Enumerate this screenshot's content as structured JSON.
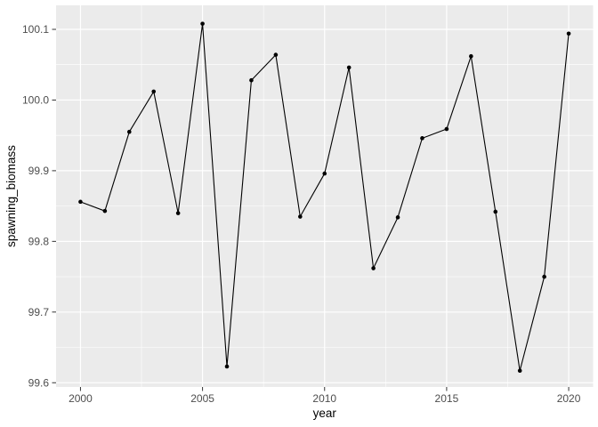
{
  "figure": {
    "background": "#FFFFFF"
  },
  "chart_data": {
    "type": "line",
    "title": "",
    "xlabel": "year",
    "ylabel": "spawning_biomass",
    "x": [
      2000,
      2001,
      2002,
      2003,
      2004,
      2005,
      2006,
      2007,
      2008,
      2009,
      2010,
      2011,
      2012,
      2013,
      2014,
      2015,
      2016,
      2017,
      2018,
      2019,
      2020
    ],
    "y": [
      99.856,
      99.843,
      99.955,
      100.012,
      99.84,
      100.108,
      99.623,
      100.028,
      100.064,
      99.835,
      99.896,
      100.046,
      99.762,
      99.834,
      99.946,
      99.959,
      100.062,
      99.842,
      99.617,
      99.75,
      100.094
    ],
    "xlim": [
      1999,
      2021
    ],
    "ylim": [
      99.594,
      100.134
    ],
    "x_ticks": {
      "values": [
        2000,
        2005,
        2010,
        2015,
        2020
      ],
      "labels": [
        "2000",
        "2005",
        "2010",
        "2015",
        "2020"
      ]
    },
    "y_ticks": {
      "values": [
        99.6,
        99.7,
        99.8,
        99.9,
        100.0,
        100.1
      ],
      "labels": [
        "99.6",
        "99.7",
        "99.8",
        "99.9",
        "100.0",
        "100.1"
      ]
    },
    "x_minor": [
      2002.5,
      2007.5,
      2012.5,
      2017.5
    ],
    "y_minor": [
      99.65,
      99.75,
      99.85,
      99.95,
      100.05
    ],
    "grid": "on",
    "legend": "none",
    "marker": "point",
    "style": {
      "panel_bg": "#EBEBEB",
      "grid_major": "#FFFFFF",
      "grid_minor": "#FFFFFF",
      "line_color": "#000000",
      "point_color": "#000000",
      "tick_label_color": "#4D4D4D",
      "axis_title_color": "#000000",
      "tick_mark_color": "#333333"
    }
  }
}
